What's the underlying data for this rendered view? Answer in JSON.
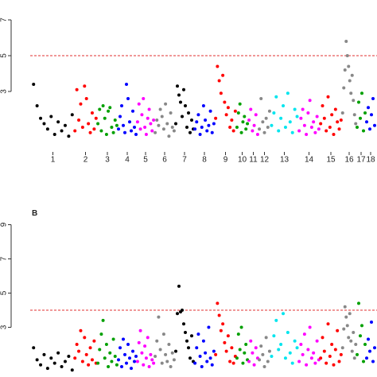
{
  "chart_data": [
    {
      "type": "manhattan",
      "ylim": [
        0,
        8
      ],
      "yticks": [
        3,
        5,
        7
      ],
      "threshold": 5,
      "threshold_color": "#e03030",
      "series": [
        {
          "name": "1",
          "color": "#000000",
          "values": [
            3.4,
            2.2,
            1.5,
            1.2,
            0.9,
            1.6,
            0.6,
            1.3,
            0.8,
            1.1,
            0.5,
            1.7
          ]
        },
        {
          "name": "2",
          "color": "#ff0000",
          "values": [
            0.8,
            3.1,
            1.4,
            2.3,
            1.0,
            3.3,
            2.6,
            1.2,
            0.7,
            1.8,
            0.9,
            1.5
          ]
        },
        {
          "name": "3",
          "color": "#00a000",
          "values": [
            1.2,
            2.0,
            0.8,
            2.2,
            1.5,
            0.6,
            1.9,
            2.1,
            1.0,
            0.7,
            1.4,
            1.1
          ]
        },
        {
          "name": "4",
          "color": "#0000ff",
          "values": [
            0.9,
            1.6,
            2.2,
            1.1,
            0.7,
            3.4,
            2.6,
            1.3,
            0.8,
            1.9,
            1.0,
            0.6
          ]
        },
        {
          "name": "5",
          "color": "#ff00ff",
          "values": [
            1.3,
            2.3,
            0.9,
            1.7,
            2.6,
            1.0,
            0.6,
            1.5,
            2.0,
            1.2,
            0.8,
            1.4
          ]
        },
        {
          "name": "6",
          "color": "#888888",
          "values": [
            0.7,
            1.4,
            1.1,
            2.0,
            1.6,
            0.9,
            2.3,
            1.2,
            0.5,
            1.8,
            1.0,
            0.8
          ]
        },
        {
          "name": "7",
          "color": "#000000",
          "values": [
            1.2,
            3.3,
            2.8,
            2.4,
            1.6,
            3.1,
            2.2,
            1.0,
            1.8,
            0.7,
            1.4,
            0.9
          ]
        },
        {
          "name": "8",
          "color": "#0000ff",
          "values": [
            0.9,
            1.3,
            1.7,
            0.6,
            1.0,
            2.2,
            1.4,
            0.8,
            1.1,
            1.9,
            0.7,
            1.2
          ]
        },
        {
          "name": "9",
          "color": "#ff0000",
          "values": [
            1.5,
            4.4,
            3.6,
            2.9,
            3.9,
            2.4,
            1.7,
            2.1,
            1.0,
            1.4,
            0.8,
            1.9
          ]
        },
        {
          "name": "10",
          "color": "#00a000",
          "values": [
            1.0,
            1.8,
            2.3,
            0.7,
            1.3,
            1.6,
            0.9,
            1.2
          ]
        },
        {
          "name": "11",
          "color": "#ff00ff",
          "values": [
            1.4,
            2.0,
            0.8,
            1.1,
            1.7,
            0.6
          ]
        },
        {
          "name": "12",
          "color": "#888888",
          "values": [
            0.9,
            2.6,
            1.3,
            0.7,
            1.5,
            1.0,
            1.9
          ]
        },
        {
          "name": "13",
          "color": "#00e5ee",
          "values": [
            1.1,
            1.8,
            2.7,
            0.8,
            1.5,
            2.2,
            1.0,
            2.9,
            1.3,
            0.7,
            2.0,
            1.6
          ]
        },
        {
          "name": "14",
          "color": "#ff00ff",
          "values": [
            0.8,
            1.5,
            2.0,
            1.1,
            0.6,
            1.8,
            2.5,
            1.0,
            1.3,
            0.7,
            1.6,
            0.9
          ]
        },
        {
          "name": "15",
          "color": "#ff0000",
          "values": [
            1.2,
            2.2,
            1.5,
            0.8,
            2.7,
            1.0,
            1.7,
            0.6,
            2.0,
            1.3,
            0.9,
            1.4
          ]
        },
        {
          "name": "16",
          "color": "#888888",
          "values": [
            1.8,
            3.2,
            4.2,
            5.8,
            5.0,
            4.4,
            3.6,
            2.9,
            3.9,
            2.5,
            1.7,
            1.2
          ]
        },
        {
          "name": "17",
          "color": "#00a000",
          "values": [
            1.0,
            2.4,
            1.5,
            2.9,
            0.8,
            1.8
          ]
        },
        {
          "name": "18",
          "color": "#0000ff",
          "values": [
            1.3,
            2.1,
            0.9,
            1.7,
            2.6,
            1.1
          ]
        }
      ]
    },
    {
      "type": "manhattan",
      "title": "B",
      "ylim": [
        0,
        9
      ],
      "yticks": [
        3,
        5,
        7,
        9
      ],
      "threshold": 4,
      "threshold_color": "#e03030",
      "series": [
        {
          "color": "#000000",
          "values": [
            1.8,
            1.1,
            0.8,
            1.4,
            0.6,
            1.2,
            0.9,
            1.5,
            0.7,
            1.0,
            1.3,
            0.5
          ]
        },
        {
          "color": "#ff0000",
          "values": [
            1.2,
            2.0,
            1.6,
            2.8,
            1.0,
            2.4,
            1.4,
            0.8,
            1.8,
            1.1,
            2.2,
            0.9
          ]
        },
        {
          "color": "#00a000",
          "values": [
            0.9,
            1.7,
            2.6,
            3.4,
            1.2,
            2.0,
            0.7,
            1.5,
            1.0,
            2.3,
            1.3,
            0.8
          ]
        },
        {
          "color": "#0000ff",
          "values": [
            1.1,
            1.8,
            0.7,
            2.3,
            1.4,
            0.9,
            2.0,
            1.2,
            0.6,
            1.6,
            1.0,
            1.3
          ]
        },
        {
          "color": "#ff00ff",
          "values": [
            1.0,
            2.1,
            2.8,
            1.5,
            0.8,
            1.9,
            1.2,
            2.4,
            0.7,
            1.4,
            1.1,
            0.9
          ]
        },
        {
          "color": "#888888",
          "values": [
            1.3,
            2.2,
            3.6,
            1.7,
            0.9,
            2.6,
            1.4,
            1.0,
            2.0,
            0.7,
            1.5,
            1.1
          ]
        },
        {
          "color": "#000000",
          "values": [
            1.6,
            3.8,
            5.4,
            3.9,
            4.0,
            3.2,
            2.7,
            2.2,
            1.8,
            1.2,
            2.5,
            1.0
          ]
        },
        {
          "color": "#0000ff",
          "values": [
            0.9,
            1.8,
            2.6,
            1.3,
            0.7,
            2.2,
            1.5,
            1.0,
            3.0,
            1.2,
            0.8,
            1.6
          ]
        },
        {
          "color": "#ff0000",
          "values": [
            1.4,
            4.4,
            3.7,
            2.8,
            3.2,
            2.1,
            1.6,
            2.5,
            1.0,
            1.8,
            0.9,
            1.3
          ]
        },
        {
          "color": "#00a000",
          "values": [
            1.2,
            2.6,
            1.7,
            3.0,
            0.9,
            1.5,
            2.0,
            1.1
          ]
        },
        {
          "color": "#ff00ff",
          "values": [
            1.0,
            2.2,
            1.5,
            0.8,
            1.8,
            1.2
          ]
        },
        {
          "color": "#888888",
          "values": [
            1.1,
            1.9,
            1.4,
            0.7,
            2.4,
            1.0,
            1.6
          ]
        },
        {
          "color": "#00e5ee",
          "values": [
            1.3,
            2.5,
            3.4,
            1.7,
            2.0,
            3.8,
            1.2,
            2.7,
            1.5,
            0.9,
            2.2,
            1.8
          ]
        },
        {
          "color": "#ff00ff",
          "values": [
            1.0,
            2.0,
            1.4,
            2.6,
            0.8,
            1.7,
            3.0,
            1.2,
            1.5,
            0.9,
            2.2,
            1.1
          ]
        },
        {
          "color": "#ff0000",
          "values": [
            1.2,
            2.4,
            1.6,
            0.9,
            3.2,
            1.3,
            2.0,
            0.8,
            1.7,
            2.8,
            1.0,
            1.4
          ]
        },
        {
          "color": "#888888",
          "values": [
            1.8,
            2.9,
            4.2,
            3.6,
            3.1,
            2.4,
            3.8,
            2.2,
            1.6,
            2.7,
            1.2,
            2.0
          ]
        },
        {
          "color": "#00a000",
          "values": [
            1.4,
            4.4,
            2.5,
            3.1,
            1.0,
            2.0
          ]
        },
        {
          "color": "#0000ff",
          "values": [
            1.2,
            2.3,
            1.6,
            3.3,
            1.0,
            1.8
          ]
        }
      ]
    }
  ]
}
